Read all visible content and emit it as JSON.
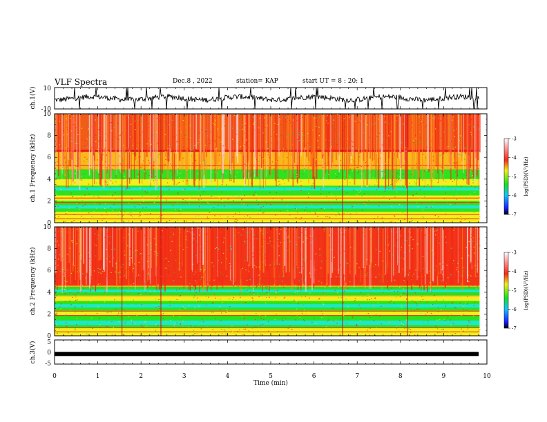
{
  "header": {
    "title": "VLF Spectra",
    "date": "Dec.8 , 2022",
    "station": "station= KAP",
    "start": "start UT = 8 : 20: 1"
  },
  "chart_data": [
    {
      "type": "line",
      "panel": "ch1-waveform",
      "ylabel": "ch.1(V)",
      "ylim": [
        -10,
        10
      ],
      "yticks": [
        "10",
        "-10"
      ],
      "x_range_min": [
        0,
        9.83
      ]
    },
    {
      "type": "heatmap",
      "panel": "ch1-spectrogram",
      "ylabel": "ch.1 Frequency (kHz)",
      "ylim": [
        0,
        10
      ],
      "yticks": [
        "0",
        "2",
        "4",
        "6",
        "8",
        "10"
      ],
      "xlim": [
        0,
        10
      ],
      "colorbar": {
        "label": "log(PSD)(V²/Hz)",
        "ticks": [
          "-3",
          "-4",
          "-5",
          "-6",
          "-7"
        ],
        "range": [
          -7,
          -3
        ]
      }
    },
    {
      "type": "heatmap",
      "panel": "ch2-spectrogram",
      "ylabel": "ch.2 Frequency (kHz)",
      "ylim": [
        0,
        10
      ],
      "yticks": [
        "0",
        "2",
        "4",
        "6",
        "8",
        "10"
      ],
      "xlim": [
        0,
        10
      ],
      "colorbar": {
        "label": "log(PSD)(V²/Hz)",
        "ticks": [
          "-3",
          "-4",
          "-5",
          "-6",
          "-7"
        ],
        "range": [
          -7,
          -3
        ]
      }
    },
    {
      "type": "line",
      "panel": "ch3-waveform",
      "ylabel": "ch.3(V)",
      "ylim": [
        -5,
        5
      ],
      "yticks": [
        "5",
        "0",
        "-5"
      ],
      "baseline_value": -0.8
    }
  ],
  "xaxis": {
    "label": "Time (min)",
    "ticks": [
      "0",
      "1",
      "2",
      "3",
      "4",
      "5",
      "6",
      "7",
      "8",
      "9",
      "10"
    ],
    "xlim": [
      0,
      10
    ]
  },
  "colors": {
    "red": "#f22a17",
    "orange": "#ff8c1a",
    "yellow": "#f3ee1c",
    "green": "#18e021",
    "cyan": "#1ee8e0",
    "blue": "#1a36ff",
    "black": "#000000"
  }
}
